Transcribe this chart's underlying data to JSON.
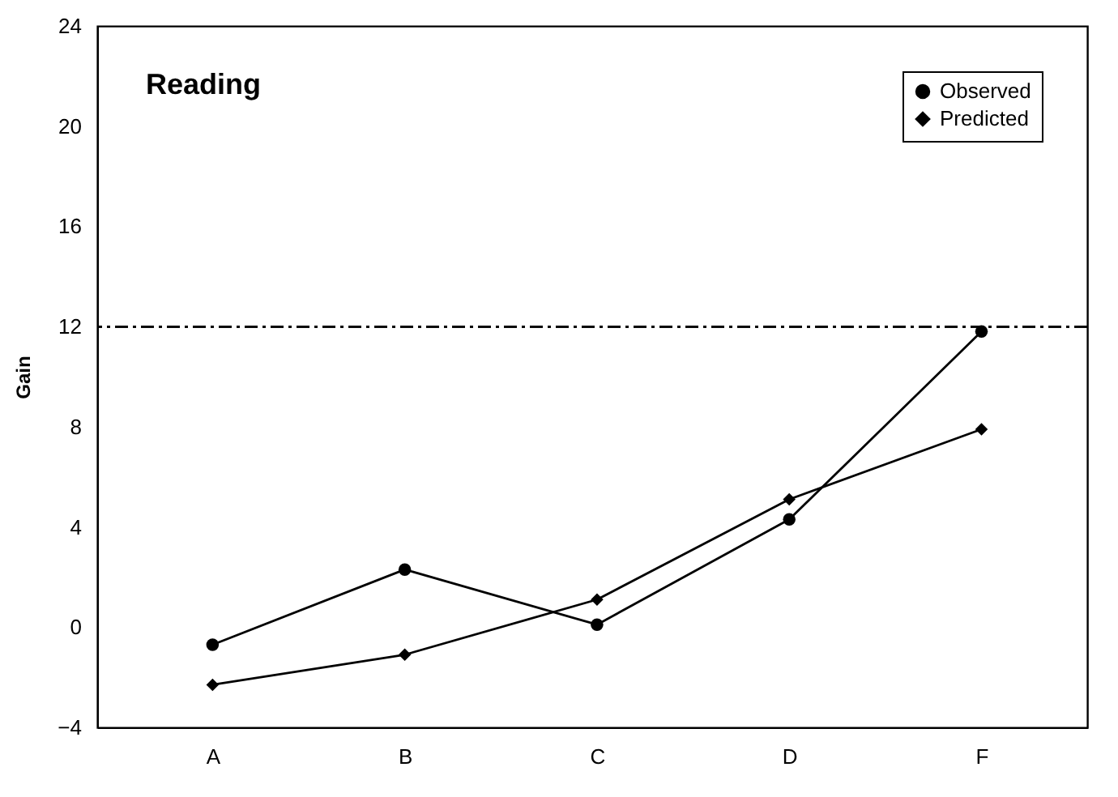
{
  "chart_data": {
    "type": "line",
    "title": "Reading",
    "ylabel": "Gain",
    "categories": [
      "A",
      "B",
      "C",
      "D",
      "F"
    ],
    "series": [
      {
        "name": "Observed",
        "color": "#000000",
        "marker": "circle",
        "values": [
          -0.7,
          2.3,
          0.1,
          4.3,
          11.8
        ]
      },
      {
        "name": "Predicted",
        "color": "#000000",
        "marker": "diamond",
        "values": [
          -2.3,
          -1.1,
          1.1,
          5.1,
          7.9
        ]
      }
    ],
    "ylim": [
      -4,
      24
    ],
    "yticks": [
      -4,
      0,
      4,
      8,
      12,
      16,
      20,
      24
    ],
    "grid": false,
    "legend": "top right",
    "ref_lines": [
      {
        "axis": "y",
        "value": 12,
        "line_style": "dashed"
      }
    ]
  }
}
